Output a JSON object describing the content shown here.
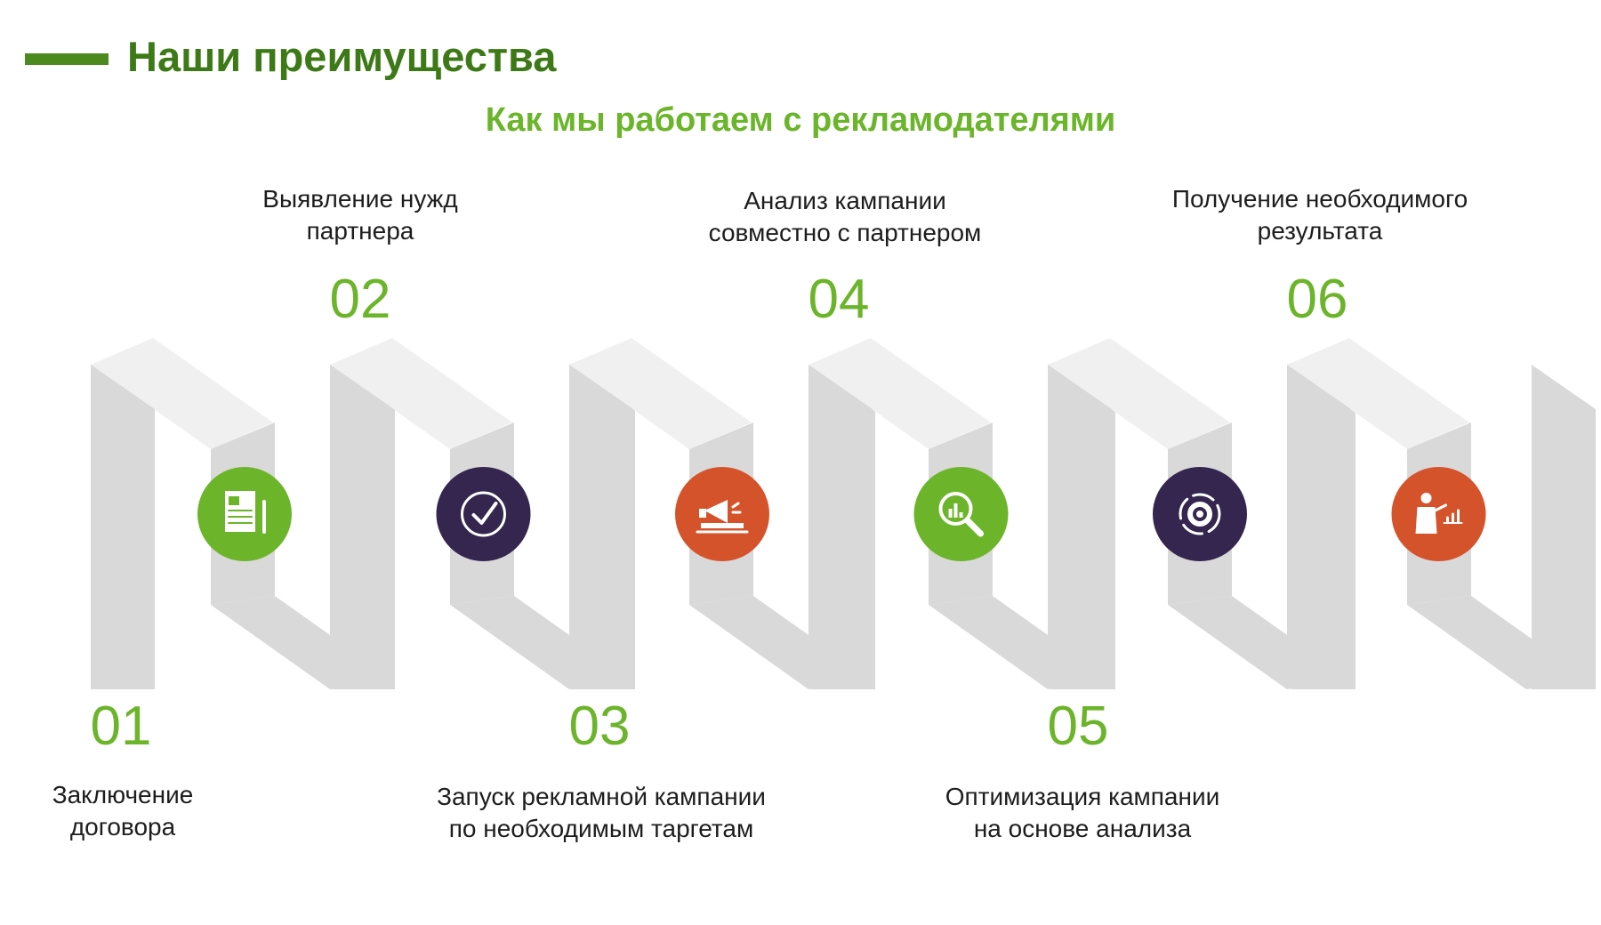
{
  "header": {
    "title": "Наши преимущества",
    "subtitle": "Как мы работаем с рекламодателями"
  },
  "steps": [
    {
      "number": "01",
      "lines": [
        "Заключение",
        "договора"
      ],
      "icon": "document-icon",
      "color": "#6cb52b"
    },
    {
      "number": "02",
      "lines": [
        "Выявление нужд",
        "партнера"
      ],
      "icon": "checkmark-icon",
      "color": "#34264f"
    },
    {
      "number": "03",
      "lines": [
        "Запуск рекламной кампании",
        "по необходимым таргетам"
      ],
      "icon": "megaphone-laptop-icon",
      "color": "#d5532b"
    },
    {
      "number": "04",
      "lines": [
        "Анализ кампании",
        "совместно с партнером"
      ],
      "icon": "magnifier-chart-icon",
      "color": "#6cb52b"
    },
    {
      "number": "05",
      "lines": [
        "Оптимизация кампании",
        "на основе анализа"
      ],
      "icon": "gear-cycle-icon",
      "color": "#34264f"
    },
    {
      "number": "06",
      "lines": [
        "Получение необходимого",
        "результата"
      ],
      "icon": "presenter-chart-icon",
      "color": "#d5532b"
    }
  ],
  "colors": {
    "title": "#3d7a17",
    "subtitle": "#6bb52a",
    "number": "#6cb52b",
    "ribbon_front": "#d9d9d9",
    "ribbon_top": "#f0f0f0"
  }
}
